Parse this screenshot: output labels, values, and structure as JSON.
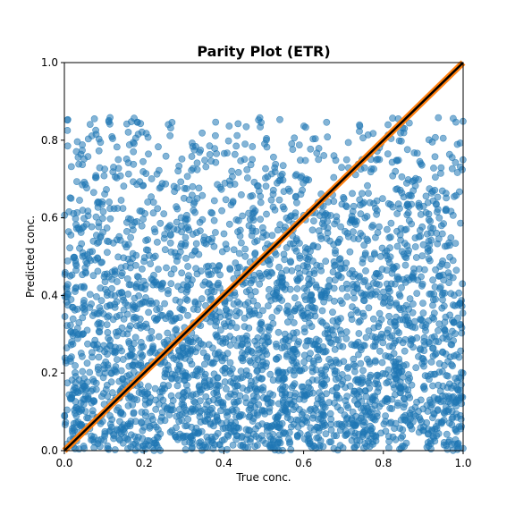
{
  "chart_data": {
    "type": "scatter",
    "title": "Parity Plot (ETR)",
    "xlabel": "True conc.",
    "ylabel": "Predicted conc.",
    "xlim": [
      0,
      1
    ],
    "ylim": [
      0,
      1
    ],
    "xticks": [
      "0.0",
      "0.2",
      "0.4",
      "0.6",
      "0.8",
      "1.0"
    ],
    "yticks": [
      "0.0",
      "0.2",
      "0.4",
      "0.6",
      "0.8",
      "1.0"
    ],
    "grid": false,
    "legend": "none",
    "point_color": "#1f77b4",
    "point_opacity": 0.55,
    "reference_lines": [
      {
        "slope": 1,
        "intercept": 0,
        "color": "#ff7f0e"
      },
      {
        "slope": 1,
        "intercept": 0,
        "color": "#000000"
      }
    ],
    "series": [
      {
        "values_description_generator": {
          "n_points": 3200,
          "seed": 7,
          "x_range": [
            0,
            1
          ],
          "y_range": [
            0,
            1
          ],
          "y_density": "decreasing toward 1, dense near 0"
        }
      }
    ]
  }
}
